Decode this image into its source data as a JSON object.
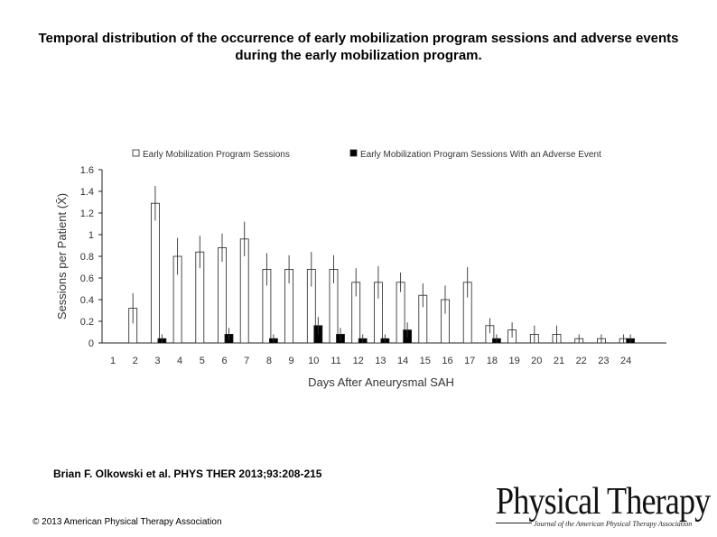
{
  "slide": {
    "title": "Temporal distribution of the occurrence of early mobilization program sessions and adverse events during the early mobilization program.",
    "citation": "Brian F. Olkowski et al. PHYS THER 2013;93:208-215",
    "copyright": "© 2013 American Physical Therapy Association",
    "logo": {
      "main": "Physical Therapy",
      "sub": "Journal of the American Physical Therapy Association"
    }
  },
  "chart_data": {
    "type": "bar",
    "xlabel": "Days After Aneurysmal SAH",
    "ylabel": "Sessions per Patient (X̄)",
    "ylim": [
      0,
      1.6
    ],
    "yticks": [
      "0",
      "0.2",
      "0.4",
      "0.6",
      "0.8",
      "1",
      "1.2",
      "1.4",
      "1.6"
    ],
    "grid": false,
    "legend_position": "top",
    "categories": [
      "1",
      "2",
      "3",
      "4",
      "5",
      "6",
      "7",
      "8",
      "9",
      "10",
      "11",
      "12",
      "13",
      "14",
      "15",
      "16",
      "17",
      "18",
      "19",
      "20",
      "21",
      "22",
      "23",
      "24"
    ],
    "series": [
      {
        "name": "Early Mobilization Program Sessions",
        "fill": "#ffffff",
        "values": [
          0,
          0.32,
          1.29,
          0.8,
          0.84,
          0.88,
          0.96,
          0.68,
          0.68,
          0.68,
          0.68,
          0.56,
          0.56,
          0.56,
          0.44,
          0.4,
          0.56,
          0.16,
          0.12,
          0.08,
          0.08,
          0.04,
          0.04,
          0.04
        ],
        "error": [
          0,
          0.14,
          0.16,
          0.17,
          0.15,
          0.13,
          0.16,
          0.15,
          0.13,
          0.16,
          0.13,
          0.13,
          0.15,
          0.09,
          0.11,
          0.13,
          0.14,
          0.07,
          0.07,
          0.08,
          0.08,
          0.04,
          0.04,
          0.04
        ]
      },
      {
        "name": "Early Mobilization Program Sessions With an Adverse Event",
        "fill": "#000000",
        "values": [
          0,
          0,
          0.04,
          0,
          0,
          0.08,
          0,
          0.04,
          0,
          0.16,
          0.08,
          0.04,
          0.04,
          0.12,
          0,
          0,
          0,
          0.04,
          0,
          0,
          0,
          0,
          0,
          0.04
        ],
        "error": [
          0,
          0,
          0.04,
          0,
          0,
          0.06,
          0,
          0.04,
          0,
          0.08,
          0.06,
          0.04,
          0.04,
          0.07,
          0,
          0,
          0,
          0.04,
          0,
          0,
          0,
          0,
          0,
          0.04
        ]
      }
    ]
  }
}
